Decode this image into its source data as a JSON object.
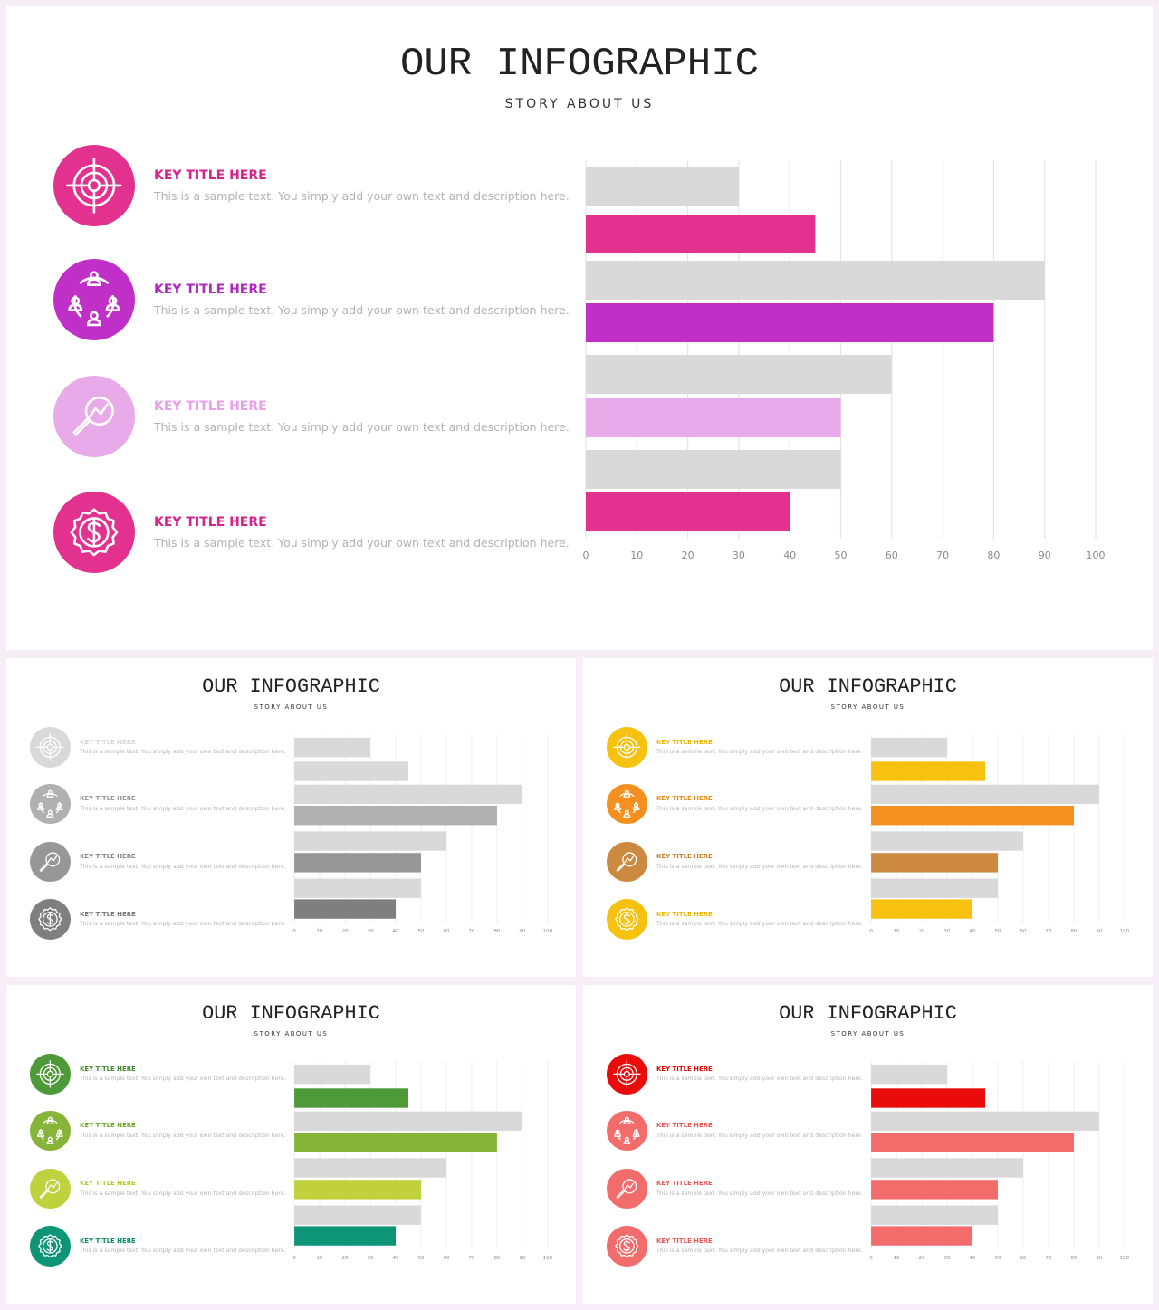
{
  "slides": [
    {
      "id": "main",
      "title": "OUR INFOGRAPHIC",
      "subtitle": "STORY ABOUT US",
      "items": [
        {
          "icon": "target-icon",
          "color": "#e2318f",
          "title_color": "#d4268a",
          "title": "KEY TITLE HERE",
          "text": "This is a sample text. You simply add your own text and description here."
        },
        {
          "icon": "team-icon",
          "color": "#c030c8",
          "title_color": "#b02ac0",
          "title": "KEY TITLE HERE",
          "text": "This is a sample text. You simply add your own text and description here."
        },
        {
          "icon": "analytics-icon",
          "color": "#e8aae8",
          "title_color": "#e8a0e8",
          "title": "KEY TITLE HERE",
          "text": "This is a sample text. You simply add your own text and description here."
        },
        {
          "icon": "dollar-badge-icon",
          "color": "#e2318f",
          "title_color": "#d4268a",
          "title": "KEY TITLE HERE",
          "text": "This is a sample text. You simply add your own text and description here."
        }
      ],
      "chart_data": {
        "type": "bar",
        "orientation": "horizontal",
        "xlim": [
          0,
          100
        ],
        "ticks": [
          0,
          10,
          20,
          30,
          40,
          50,
          60,
          70,
          80,
          90,
          100
        ],
        "series": [
          {
            "values": [
              30,
              90,
              60,
              50
            ],
            "color": "#d9d9d9"
          },
          {
            "values": [
              45,
              80,
              50,
              40
            ],
            "colors": [
              "#e2318f",
              "#c030c8",
              "#e8aae8",
              "#e2318f"
            ]
          }
        ],
        "grid": true
      }
    },
    {
      "id": "gray",
      "title": "OUR INFOGRAPHIC",
      "subtitle": "STORY ABOUT US",
      "items": [
        {
          "icon": "target-icon",
          "color": "#d9d9d9",
          "title_color": "#d9d9d9",
          "title": "KEY TITLE HERE",
          "text": "This is a sample text. You simply add your own text and description here."
        },
        {
          "icon": "team-icon",
          "color": "#b0b0b0",
          "title_color": "#9a9a9a",
          "title": "KEY TITLE HERE",
          "text": "This is a sample text. You simply add your own text and description here."
        },
        {
          "icon": "analytics-icon",
          "color": "#979797",
          "title_color": "#8a8a8a",
          "title": "KEY TITLE HERE",
          "text": "This is a sample text. You simply add your own text and description here."
        },
        {
          "icon": "dollar-badge-icon",
          "color": "#7f7f7f",
          "title_color": "#7a7a7a",
          "title": "KEY TITLE HERE",
          "text": "This is a sample text. You simply add your own text and description here."
        }
      ],
      "chart_data": {
        "type": "bar",
        "orientation": "horizontal",
        "xlim": [
          0,
          100
        ],
        "ticks": [
          0,
          10,
          20,
          30,
          40,
          50,
          60,
          70,
          80,
          90,
          100
        ],
        "series": [
          {
            "values": [
              30,
              90,
              60,
              50
            ],
            "color": "#d9d9d9"
          },
          {
            "values": [
              45,
              80,
              50,
              40
            ],
            "colors": [
              "#d9d9d9",
              "#b0b0b0",
              "#979797",
              "#7f7f7f"
            ]
          }
        ],
        "grid": true
      }
    },
    {
      "id": "orange",
      "title": "OUR INFOGRAPHIC",
      "subtitle": "STORY ABOUT US",
      "items": [
        {
          "icon": "target-icon",
          "color": "#f6c20f",
          "title_color": "#f0b800",
          "title": "KEY TITLE HERE",
          "text": "This is a sample text. You simply add your own text and description here."
        },
        {
          "icon": "team-icon",
          "color": "#f4901f",
          "title_color": "#ee8a10",
          "title": "KEY TITLE HERE",
          "text": "This is a sample text. You simply add your own text and description here."
        },
        {
          "icon": "analytics-icon",
          "color": "#cc8a40",
          "title_color": "#c88030",
          "title": "KEY TITLE HERE",
          "text": "This is a sample text. You simply add your own text and description here."
        },
        {
          "icon": "dollar-badge-icon",
          "color": "#f6c20f",
          "title_color": "#f0b800",
          "title": "KEY TITLE HERE",
          "text": "This is a sample text. You simply add your own text and description here."
        }
      ],
      "chart_data": {
        "type": "bar",
        "orientation": "horizontal",
        "xlim": [
          0,
          100
        ],
        "ticks": [
          0,
          10,
          20,
          30,
          40,
          50,
          60,
          70,
          80,
          90,
          100
        ],
        "series": [
          {
            "values": [
              30,
              90,
              60,
              50
            ],
            "color": "#d9d9d9"
          },
          {
            "values": [
              45,
              80,
              50,
              40
            ],
            "colors": [
              "#f6c20f",
              "#f4901f",
              "#cc8a40",
              "#f6c20f"
            ]
          }
        ],
        "grid": true
      }
    },
    {
      "id": "green",
      "title": "OUR INFOGRAPHIC",
      "subtitle": "STORY ABOUT US",
      "items": [
        {
          "icon": "target-icon",
          "color": "#4e9a38",
          "title_color": "#3f8a2c",
          "title": "KEY TITLE HERE",
          "text": "This is a sample text. You simply add your own text and description here."
        },
        {
          "icon": "team-icon",
          "color": "#86b53a",
          "title_color": "#74a82c",
          "title": "KEY TITLE HERE",
          "text": "This is a sample text. You simply add your own text and description here."
        },
        {
          "icon": "analytics-icon",
          "color": "#bfd13c",
          "title_color": "#b4c82c",
          "title": "KEY TITLE HERE",
          "text": "This is a sample text. You simply add your own text and description here."
        },
        {
          "icon": "dollar-badge-icon",
          "color": "#0e9577",
          "title_color": "#0b8a6c",
          "title": "KEY TITLE HERE",
          "text": "This is a sample text. You simply add your own text and description here."
        }
      ],
      "chart_data": {
        "type": "bar",
        "orientation": "horizontal",
        "xlim": [
          0,
          100
        ],
        "ticks": [
          0,
          10,
          20,
          30,
          40,
          50,
          60,
          70,
          80,
          90,
          100
        ],
        "series": [
          {
            "values": [
              30,
              90,
              60,
              50
            ],
            "color": "#d9d9d9"
          },
          {
            "values": [
              45,
              80,
              50,
              40
            ],
            "colors": [
              "#4e9a38",
              "#86b53a",
              "#bfd13c",
              "#0e9577"
            ]
          }
        ],
        "grid": true
      }
    },
    {
      "id": "red",
      "title": "OUR INFOGRAPHIC",
      "subtitle": "STORY ABOUT US",
      "items": [
        {
          "icon": "target-icon",
          "color": "#ea0b0b",
          "title_color": "#d80a0a",
          "title": "KEY TITLE HERE",
          "text": "This is a sample text. You simply add your own text and description here."
        },
        {
          "icon": "team-icon",
          "color": "#f36c6c",
          "title_color": "#e85a5a",
          "title": "KEY TITLE HERE",
          "text": "This is a sample text. You simply add your own text and description here."
        },
        {
          "icon": "analytics-icon",
          "color": "#f36c6c",
          "title_color": "#e85a5a",
          "title": "KEY TITLE HERE",
          "text": "This is a sample text. You simply add your own text and description here."
        },
        {
          "icon": "dollar-badge-icon",
          "color": "#f36c6c",
          "title_color": "#e85a5a",
          "title": "KEY TITLE HERE",
          "text": "This is a sample text. You simply add your own text and description here."
        }
      ],
      "chart_data": {
        "type": "bar",
        "orientation": "horizontal",
        "xlim": [
          0,
          100
        ],
        "ticks": [
          0,
          10,
          20,
          30,
          40,
          50,
          60,
          70,
          80,
          90,
          100
        ],
        "series": [
          {
            "values": [
              30,
              90,
              60,
              50
            ],
            "color": "#d9d9d9"
          },
          {
            "values": [
              45,
              80,
              50,
              40
            ],
            "colors": [
              "#ea0b0b",
              "#f36c6c",
              "#f36c6c",
              "#f36c6c"
            ]
          }
        ],
        "grid": true
      }
    }
  ]
}
